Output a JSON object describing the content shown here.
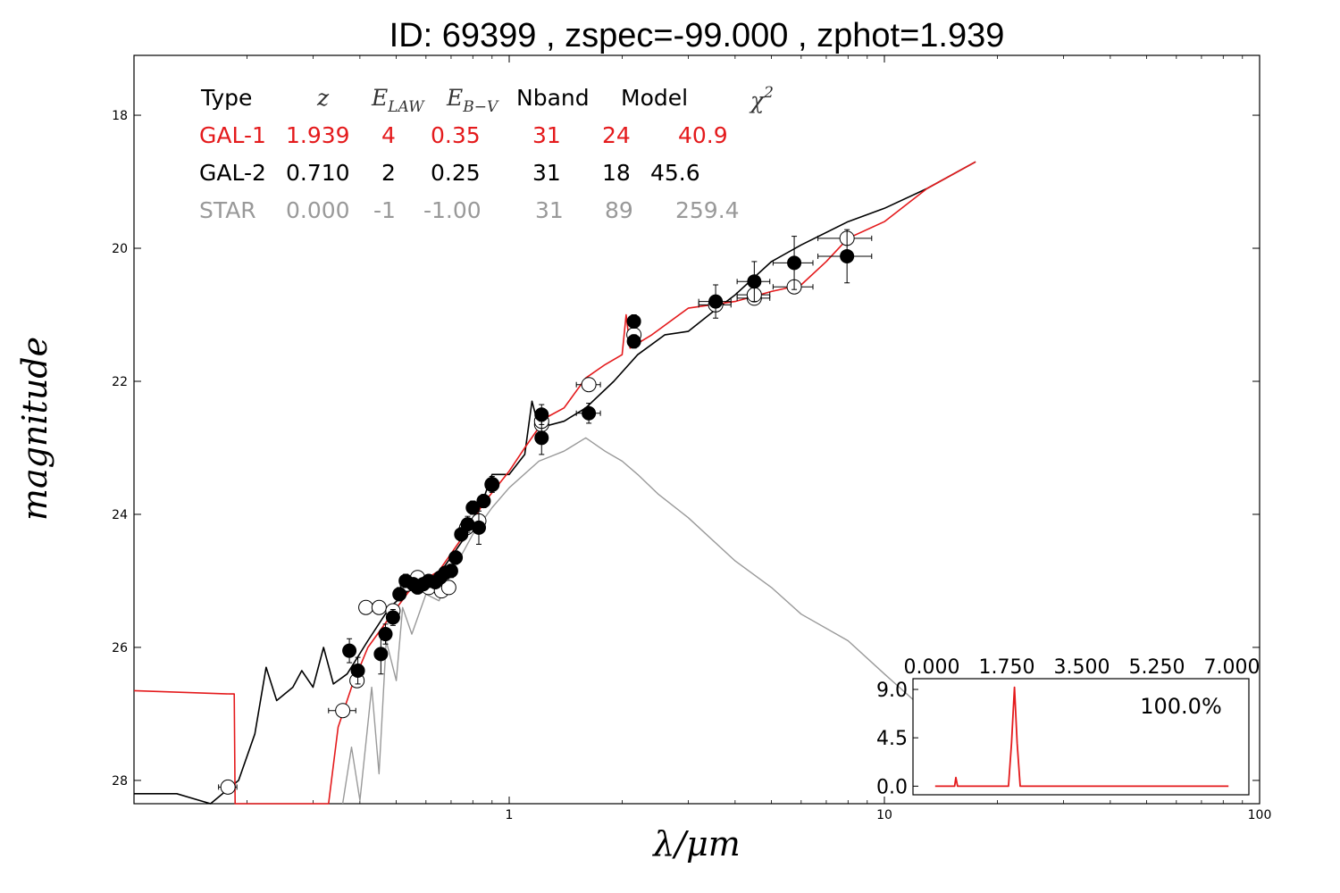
{
  "title": "ID:  69399 , zspec=-99.000 , zphot=1.939",
  "colors": {
    "gal1": "#e41a1c",
    "gal2": "#000000",
    "star": "#999999"
  },
  "table": {
    "headers": {
      "type": "Type",
      "z": "z",
      "elaw": "E",
      "elaw_sub": "LAW",
      "ebv": "E",
      "ebv_sub": "B−V",
      "nband": "Nband",
      "model": "Model",
      "chi2": "χ",
      "chi2_sup": "2"
    },
    "rows": [
      {
        "type": "GAL-1",
        "z": "1.939",
        "elaw": "4",
        "ebv": "0.35",
        "nband": "31",
        "model": "24",
        "chi2": "40.9",
        "color": "#e41a1c"
      },
      {
        "type": "GAL-2",
        "z": "0.710",
        "elaw": "2",
        "ebv": "0.25",
        "nband": "31",
        "model": "18",
        "chi2": "45.6",
        "color": "#000000"
      },
      {
        "type": "STAR",
        "z": "0.000",
        "elaw": "-1",
        "ebv": "-1.00",
        "nband": "31",
        "model": "89",
        "chi2": "259.4",
        "color": "#999999"
      }
    ]
  },
  "chart_data": {
    "type": "scatter",
    "xlabel": "λ/μm",
    "ylabel": "magnitude",
    "xscale": "log",
    "xlim": [
      0.1,
      100
    ],
    "ylim": [
      28.35,
      17.1
    ],
    "y_inverted": true,
    "x_ticks": [
      1,
      10,
      100
    ],
    "x_tick_labels": [
      "1",
      "10",
      "100"
    ],
    "y_ticks": [
      18,
      20,
      22,
      24,
      26,
      28
    ],
    "y_tick_labels": [
      "18",
      "20",
      "22",
      "24",
      "26",
      "28"
    ],
    "observed": [
      {
        "x": 0.375,
        "y": 26.05,
        "xerr": 0.012,
        "yerr": 0.18
      },
      {
        "x": 0.395,
        "y": 26.35,
        "xerr": 0.012,
        "yerr": 0.2
      },
      {
        "x": 0.455,
        "y": 26.1,
        "xerr": 0.01,
        "yerr": 0.3
      },
      {
        "x": 0.468,
        "y": 25.8,
        "xerr": 0.01,
        "yerr": 0.15
      },
      {
        "x": 0.49,
        "y": 25.55,
        "xerr": 0.012,
        "yerr": 0.12
      },
      {
        "x": 0.51,
        "y": 25.2,
        "xerr": 0.012,
        "yerr": 0.1
      },
      {
        "x": 0.53,
        "y": 25.0,
        "xerr": 0.012,
        "yerr": 0.1
      },
      {
        "x": 0.555,
        "y": 25.05,
        "xerr": 0.012,
        "yerr": 0.08
      },
      {
        "x": 0.57,
        "y": 25.1,
        "xerr": 0.012,
        "yerr": 0.08
      },
      {
        "x": 0.59,
        "y": 25.05,
        "xerr": 0.012,
        "yerr": 0.08
      },
      {
        "x": 0.61,
        "y": 25.0,
        "xerr": 0.012,
        "yerr": 0.08
      },
      {
        "x": 0.635,
        "y": 25.02,
        "xerr": 0.012,
        "yerr": 0.08
      },
      {
        "x": 0.655,
        "y": 24.95,
        "xerr": 0.012,
        "yerr": 0.08
      },
      {
        "x": 0.675,
        "y": 24.88,
        "xerr": 0.012,
        "yerr": 0.08
      },
      {
        "x": 0.7,
        "y": 24.85,
        "xerr": 0.015,
        "yerr": 0.1
      },
      {
        "x": 0.72,
        "y": 24.65,
        "xerr": 0.015,
        "yerr": 0.1
      },
      {
        "x": 0.745,
        "y": 24.3,
        "xerr": 0.015,
        "yerr": 0.1
      },
      {
        "x": 0.775,
        "y": 24.15,
        "xerr": 0.015,
        "yerr": 0.12
      },
      {
        "x": 0.8,
        "y": 23.9,
        "xerr": 0.015,
        "yerr": 0.1
      },
      {
        "x": 0.83,
        "y": 24.2,
        "xerr": 0.015,
        "yerr": 0.25
      },
      {
        "x": 0.855,
        "y": 23.8,
        "xerr": 0.015,
        "yerr": 0.1
      },
      {
        "x": 0.9,
        "y": 23.55,
        "xerr": 0.015,
        "yerr": 0.12
      },
      {
        "x": 1.22,
        "y": 22.5,
        "xerr": 0.03,
        "yerr": 0.15
      },
      {
        "x": 1.22,
        "y": 22.85,
        "xerr": 0.03,
        "yerr": 0.25
      },
      {
        "x": 1.63,
        "y": 22.48,
        "xerr": 0.12,
        "yerr": 0.15
      },
      {
        "x": 2.15,
        "y": 21.1,
        "xerr": 0.08,
        "yerr": 0.1
      },
      {
        "x": 2.15,
        "y": 21.4,
        "xerr": 0.08,
        "yerr": 0.1
      },
      {
        "x": 3.55,
        "y": 20.8,
        "xerr": 0.35,
        "yerr": 0.25
      },
      {
        "x": 4.5,
        "y": 20.5,
        "xerr": 0.45,
        "yerr": 0.3
      },
      {
        "x": 5.75,
        "y": 20.22,
        "xerr": 0.7,
        "yerr": 0.4
      },
      {
        "x": 7.95,
        "y": 20.12,
        "xerr": 1.3,
        "yerr": 0.4
      }
    ],
    "model": [
      {
        "x": 0.178,
        "y": 28.1,
        "xerr": 0.01
      },
      {
        "x": 0.36,
        "y": 26.95,
        "xerr": 0.03
      },
      {
        "x": 0.393,
        "y": 26.5,
        "xerr": 0.01
      },
      {
        "x": 0.415,
        "y": 25.4,
        "xerr": 0.01
      },
      {
        "x": 0.45,
        "y": 25.4,
        "xerr": 0.01
      },
      {
        "x": 0.49,
        "y": 25.45,
        "xerr": 0.012
      },
      {
        "x": 0.535,
        "y": 25.05,
        "xerr": 0.012
      },
      {
        "x": 0.57,
        "y": 24.95,
        "xerr": 0.012
      },
      {
        "x": 0.61,
        "y": 25.1,
        "xerr": 0.012
      },
      {
        "x": 0.66,
        "y": 25.15,
        "xerr": 0.012
      },
      {
        "x": 0.69,
        "y": 25.1,
        "xerr": 0.012
      },
      {
        "x": 0.77,
        "y": 24.2,
        "xerr": 0.015
      },
      {
        "x": 0.83,
        "y": 24.1,
        "xerr": 0.015
      },
      {
        "x": 0.9,
        "y": 23.55,
        "xerr": 0.015
      },
      {
        "x": 1.22,
        "y": 22.65,
        "xerr": 0.03
      },
      {
        "x": 1.22,
        "y": 22.6,
        "xerr": 0.03
      },
      {
        "x": 1.63,
        "y": 22.05,
        "xerr": 0.12
      },
      {
        "x": 2.15,
        "y": 21.3,
        "xerr": 0.08
      },
      {
        "x": 3.55,
        "y": 20.85,
        "xerr": 0.35
      },
      {
        "x": 4.5,
        "y": 20.75,
        "xerr": 0.45
      },
      {
        "x": 4.5,
        "y": 20.7,
        "xerr": 0.45
      },
      {
        "x": 5.75,
        "y": 20.58,
        "xerr": 0.7
      },
      {
        "x": 7.95,
        "y": 19.85,
        "xerr": 1.3
      }
    ],
    "series": [
      {
        "name": "GAL-1",
        "color": "#e41a1c",
        "points": [
          [
            0.1,
            26.65
          ],
          [
            0.18,
            26.7
          ],
          [
            0.185,
            26.7
          ],
          [
            0.186,
            28.5
          ],
          [
            0.33,
            28.4
          ],
          [
            0.35,
            27.2
          ],
          [
            0.38,
            26.6
          ],
          [
            0.42,
            26.0
          ],
          [
            0.48,
            25.55
          ],
          [
            0.55,
            25.1
          ],
          [
            0.65,
            24.85
          ],
          [
            0.75,
            24.35
          ],
          [
            0.85,
            23.85
          ],
          [
            1.0,
            23.35
          ],
          [
            1.1,
            23.0
          ],
          [
            1.25,
            22.55
          ],
          [
            1.4,
            22.4
          ],
          [
            1.6,
            21.95
          ],
          [
            1.8,
            21.75
          ],
          [
            2.0,
            21.6
          ],
          [
            2.05,
            21.0
          ],
          [
            2.1,
            21.5
          ],
          [
            2.4,
            21.3
          ],
          [
            3.0,
            20.9
          ],
          [
            4.0,
            20.8
          ],
          [
            5.0,
            20.65
          ],
          [
            6.0,
            20.55
          ],
          [
            7.0,
            20.2
          ],
          [
            8.0,
            19.85
          ],
          [
            10.0,
            19.6
          ],
          [
            13.0,
            19.1
          ],
          [
            17.5,
            18.7
          ]
        ]
      },
      {
        "name": "GAL-2",
        "color": "#000000",
        "points": [
          [
            0.1,
            28.2
          ],
          [
            0.13,
            28.2
          ],
          [
            0.16,
            28.4
          ],
          [
            0.19,
            28.0
          ],
          [
            0.21,
            27.3
          ],
          [
            0.225,
            26.3
          ],
          [
            0.24,
            26.8
          ],
          [
            0.265,
            26.6
          ],
          [
            0.28,
            26.35
          ],
          [
            0.3,
            26.6
          ],
          [
            0.32,
            26.0
          ],
          [
            0.34,
            26.55
          ],
          [
            0.37,
            26.4
          ],
          [
            0.42,
            25.9
          ],
          [
            0.48,
            25.4
          ],
          [
            0.55,
            25.1
          ],
          [
            0.65,
            24.9
          ],
          [
            0.75,
            24.4
          ],
          [
            0.85,
            23.8
          ],
          [
            0.9,
            23.4
          ],
          [
            1.0,
            23.4
          ],
          [
            1.1,
            23.1
          ],
          [
            1.15,
            22.3
          ],
          [
            1.2,
            22.7
          ],
          [
            1.4,
            22.6
          ],
          [
            1.6,
            22.4
          ],
          [
            1.9,
            22.0
          ],
          [
            2.2,
            21.6
          ],
          [
            2.6,
            21.3
          ],
          [
            3.0,
            21.25
          ],
          [
            3.5,
            20.95
          ],
          [
            4.0,
            20.7
          ],
          [
            5.0,
            20.2
          ],
          [
            6.0,
            19.95
          ],
          [
            8.0,
            19.6
          ],
          [
            10.0,
            19.4
          ],
          [
            13.0,
            19.1
          ],
          [
            17.5,
            18.7
          ]
        ]
      },
      {
        "name": "STAR",
        "color": "#999999",
        "points": [
          [
            0.36,
            28.4
          ],
          [
            0.38,
            27.5
          ],
          [
            0.4,
            28.3
          ],
          [
            0.43,
            26.6
          ],
          [
            0.45,
            27.9
          ],
          [
            0.47,
            25.9
          ],
          [
            0.5,
            26.5
          ],
          [
            0.52,
            25.4
          ],
          [
            0.55,
            25.8
          ],
          [
            0.6,
            25.2
          ],
          [
            0.65,
            25.3
          ],
          [
            0.7,
            24.9
          ],
          [
            0.8,
            24.3
          ],
          [
            0.9,
            23.9
          ],
          [
            1.0,
            23.6
          ],
          [
            1.2,
            23.2
          ],
          [
            1.4,
            23.05
          ],
          [
            1.6,
            22.85
          ],
          [
            1.8,
            23.05
          ],
          [
            2.0,
            23.2
          ],
          [
            2.2,
            23.4
          ],
          [
            2.5,
            23.7
          ],
          [
            3.0,
            24.05
          ],
          [
            4.0,
            24.7
          ],
          [
            5.0,
            25.1
          ],
          [
            6.0,
            25.5
          ],
          [
            8.0,
            25.9
          ],
          [
            10.0,
            26.4
          ],
          [
            12.0,
            26.8
          ]
        ]
      }
    ],
    "inset": {
      "type": "line",
      "label": "100.0%",
      "color": "#e41a1c",
      "xlim": [
        0.0,
        7.0
      ],
      "ylim": [
        -0.8,
        10.0
      ],
      "x_tick_labels": [
        "0.000",
        "1.750",
        "3.500",
        "5.250",
        "7.000"
      ],
      "y_tick_labels": [
        "9.0",
        "4.5",
        "0.0"
      ],
      "y_ticks": [
        9.0,
        4.5,
        0.0
      ],
      "points": [
        [
          0.1,
          0.0
        ],
        [
          0.55,
          0.0
        ],
        [
          0.58,
          0.8
        ],
        [
          0.62,
          0.0
        ],
        [
          1.8,
          0.0
        ],
        [
          1.87,
          4.0
        ],
        [
          1.939,
          9.2
        ],
        [
          2.0,
          4.0
        ],
        [
          2.07,
          0.0
        ],
        [
          6.9,
          0.0
        ]
      ]
    }
  }
}
